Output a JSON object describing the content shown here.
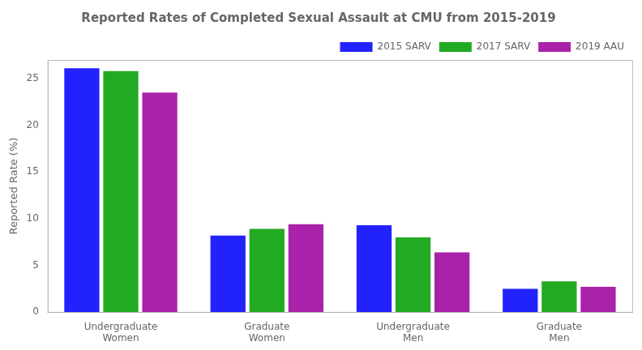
{
  "chart_data": {
    "type": "bar",
    "title": "Reported Rates of Completed Sexual Assault at CMU from 2015-2019",
    "ylabel": "Reported Rate (%)",
    "categories": [
      "Undergraduate\nWomen",
      "Graduate\nWomen",
      "Undergraduate\nMen",
      "Graduate\nMen"
    ],
    "series": [
      {
        "name": "2015 SARV",
        "color": "#2222ff",
        "values": [
          26.1,
          8.2,
          9.3,
          2.5
        ]
      },
      {
        "name": "2017 SARV",
        "color": "#22aa22",
        "values": [
          25.8,
          8.9,
          8.0,
          3.3
        ]
      },
      {
        "name": "2019 AAU",
        "color": "#aa22aa",
        "values": [
          23.5,
          9.4,
          6.4,
          2.7
        ]
      }
    ],
    "ylim": [
      0,
      27
    ],
    "yticks": [
      0,
      5,
      10,
      15,
      20,
      25
    ],
    "grid": false,
    "legend": "upper right"
  }
}
